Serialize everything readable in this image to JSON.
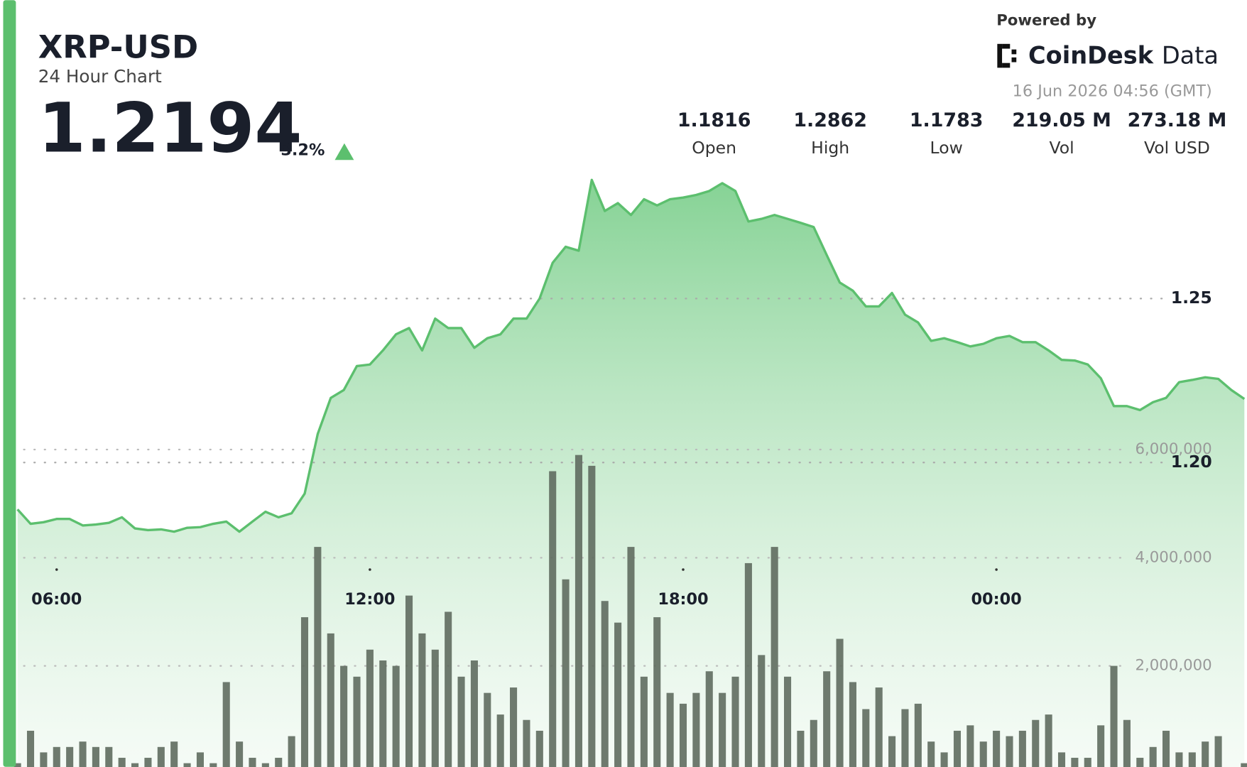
{
  "header": {
    "symbol": "XRP-USD",
    "subtitle": "24 Hour Chart",
    "price": "1.2194",
    "change": "3.2%",
    "powered_by": "Powered by",
    "brand_name": "CoinDesk",
    "brand_suffix": "Data",
    "timestamp": "16 Jun 2026 04:56 (GMT)"
  },
  "stats": [
    {
      "value": "1.1816",
      "label": "Open"
    },
    {
      "value": "1.2862",
      "label": "High"
    },
    {
      "value": "1.1783",
      "label": "Low"
    },
    {
      "value": "219.05 M",
      "label": "Vol"
    },
    {
      "value": "273.18 M",
      "label": "Vol USD"
    }
  ],
  "chart_data": {
    "type": "area",
    "x": [
      5.25,
      5.5,
      5.75,
      6,
      6.25,
      6.5,
      6.75,
      7,
      7.25,
      7.5,
      7.75,
      8,
      8.25,
      8.5,
      8.75,
      9,
      9.25,
      9.5,
      9.75,
      10,
      10.25,
      10.5,
      10.75,
      11,
      11.25,
      11.5,
      11.75,
      12,
      12.25,
      12.5,
      12.75,
      13,
      13.25,
      13.5,
      13.75,
      14,
      14.25,
      14.5,
      14.75,
      15,
      15.25,
      15.5,
      15.75,
      16,
      16.25,
      16.5,
      16.75,
      17,
      17.25,
      17.5,
      17.75,
      18,
      18.25,
      18.5,
      18.75,
      19,
      19.25,
      19.5,
      19.75,
      20,
      20.25,
      20.5,
      20.75,
      21,
      21.25,
      21.5,
      21.75,
      22,
      22.25,
      22.5,
      22.75,
      23,
      23.25,
      23.5,
      23.75,
      24,
      24.25,
      24.5,
      24.75,
      25,
      25.25,
      25.5,
      25.75,
      26,
      26.25,
      26.5,
      26.75,
      27,
      27.25,
      27.5,
      27.75,
      28,
      28.25,
      28.5,
      28.75
    ],
    "series": [
      {
        "color": "#5cbf6e",
        "values": [
          1.1857,
          1.1813,
          1.1818,
          1.1828,
          1.1828,
          1.1808,
          1.1811,
          1.1816,
          1.1833,
          1.1799,
          1.1794,
          1.1796,
          1.1789,
          1.1801,
          1.1803,
          1.1813,
          1.182,
          1.1789,
          1.182,
          1.185,
          1.1833,
          1.1845,
          1.1905,
          1.2087,
          1.2197,
          1.2221,
          1.2294,
          1.2299,
          1.2342,
          1.2391,
          1.241,
          1.2342,
          1.2439,
          1.241,
          1.241,
          1.235,
          1.2379,
          1.2391,
          1.2439,
          1.2439,
          1.25,
          1.2609,
          1.2658,
          1.2646,
          1.2862,
          1.2767,
          1.2791,
          1.2755,
          1.2803,
          1.2784,
          1.2803,
          1.2808,
          1.2816,
          1.2828,
          1.2852,
          1.2828,
          1.2735,
          1.2743,
          1.2755,
          1.2743,
          1.2731,
          1.2718,
          1.2633,
          1.2549,
          1.2524,
          1.2476,
          1.2476,
          1.2517,
          1.2451,
          1.2427,
          1.2371,
          1.2379,
          1.2367,
          1.2354,
          1.2362,
          1.2379,
          1.2386,
          1.2367,
          1.2367,
          1.2342,
          1.2313,
          1.2311,
          1.2299,
          1.2257,
          1.2172,
          1.2172,
          1.216,
          1.2184,
          1.2197,
          1.2245,
          1.2252,
          1.226,
          1.2255,
          1.2221,
          1.2194
        ]
      },
      {
        "color": "#5f6b5f",
        "axis": "y2",
        "values": [
          200000,
          800000,
          400000,
          500000,
          500000,
          600000,
          500000,
          500000,
          300000,
          200000,
          300000,
          500000,
          600000,
          200000,
          400000,
          200000,
          1700000,
          600000,
          300000,
          200000,
          300000,
          700000,
          2900000,
          4200000,
          2600000,
          2000000,
          1800000,
          2300000,
          2100000,
          2000000,
          3300000,
          2600000,
          2300000,
          3000000,
          1800000,
          2100000,
          1500000,
          1100000,
          1600000,
          1000000,
          800000,
          5600000,
          3600000,
          5900000,
          5700000,
          3200000,
          2800000,
          4200000,
          1800000,
          2900000,
          1500000,
          1300000,
          1500000,
          1900000,
          1500000,
          1800000,
          3900000,
          2200000,
          4200000,
          1800000,
          800000,
          1000000,
          1900000,
          2500000,
          1700000,
          1200000,
          1600000,
          700000,
          1200000,
          1300000,
          600000,
          400000,
          800000,
          900000,
          600000,
          800000,
          700000,
          800000,
          1000000,
          1100000,
          400000,
          300000,
          300000,
          900000,
          2000000,
          1000000,
          300000,
          500000,
          800000,
          400000,
          400000,
          600000,
          700000,
          100000,
          200000
        ]
      }
    ],
    "xlim": [
      5.25,
      28.8
    ],
    "xticks": [
      {
        "value": 6,
        "label": "06:00"
      },
      {
        "value": 12,
        "label": "12:00"
      },
      {
        "value": 18,
        "label": "18:00"
      },
      {
        "value": 24,
        "label": "00:00"
      }
    ],
    "ylim": [
      1.105,
      1.2925
    ],
    "yticks": [
      {
        "value": 1.2,
        "label": "1.20"
      },
      1.25
    ],
    "y2lim": [
      0,
      11370000
    ],
    "y2ticks": [
      {
        "value": 2000000,
        "label": "2,000,000"
      },
      {
        "value": 4000000,
        "label": "4,000,000"
      },
      {
        "value": 6000000,
        "label": "6,000,000"
      }
    ],
    "grid": true
  }
}
